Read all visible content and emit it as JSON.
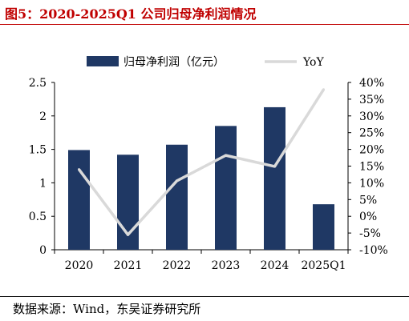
{
  "figure_title": "图5：2020-2025Q1 公司归母净利润情况",
  "source": "数据来源：Wind，东吴证券研究所",
  "chart_data": {
    "type": "bar",
    "categories": [
      "2020",
      "2021",
      "2022",
      "2023",
      "2024",
      "2025Q1"
    ],
    "series": [
      {
        "name": "归母净利润（亿元）",
        "type": "bar",
        "axis": "left",
        "color": "#1f3864",
        "values": [
          1.49,
          1.42,
          1.57,
          1.85,
          2.13,
          0.68
        ]
      },
      {
        "name": "YoY",
        "type": "line",
        "axis": "right",
        "color": "#d9d9d9",
        "values": [
          14,
          -5.5,
          10.6,
          18.2,
          14.9,
          37.9
        ]
      }
    ],
    "y_left": {
      "min": 0,
      "max": 2.5,
      "ticks": [
        "0",
        "0.5",
        "1",
        "1.5",
        "2",
        "2.5"
      ]
    },
    "y_right": {
      "min": -10,
      "max": 40,
      "ticks": [
        "-10%",
        "-5%",
        "0%",
        "5%",
        "10%",
        "15%",
        "20%",
        "25%",
        "30%",
        "35%",
        "40%"
      ]
    },
    "legend_position": "top",
    "grid": false
  }
}
